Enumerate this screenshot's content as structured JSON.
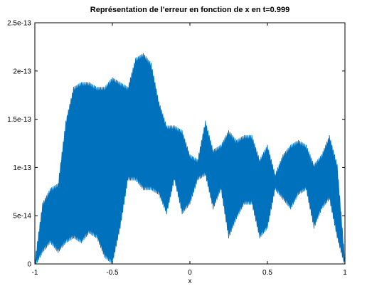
{
  "chart_data": {
    "type": "area",
    "title": "Représentation de l'erreur en fonction de x en t=0.999",
    "xlabel": "x",
    "ylabel": "",
    "xlim": [
      -1,
      1
    ],
    "ylim": [
      0,
      2.5e-13
    ],
    "grid": false,
    "legend": "none",
    "series_color": "#0072BD",
    "x_ticks": [
      -1,
      -0.5,
      0,
      0.5,
      1
    ],
    "x_tick_labels": [
      "-1",
      "-0.5",
      "0",
      "0.5",
      "1"
    ],
    "y_ticks": [
      0,
      5e-14,
      1e-13,
      1.5e-13,
      2e-13,
      2.5e-13
    ],
    "y_tick_labels": [
      "0",
      "5e-14",
      "1e-13",
      "1.5e-13",
      "2e-13",
      "2.5e-13"
    ],
    "series": [
      {
        "x": [
          -1,
          -0.95,
          -0.9,
          -0.85,
          -0.8,
          -0.75,
          -0.7,
          -0.65,
          -0.6,
          -0.55,
          -0.5,
          -0.45,
          -0.4,
          -0.35,
          -0.3,
          -0.25,
          -0.2,
          -0.15,
          -0.1,
          -0.05,
          0,
          0.05,
          0.1,
          0.15,
          0.2,
          0.25,
          0.3,
          0.35,
          0.4,
          0.45,
          0.5,
          0.55,
          0.6,
          0.65,
          0.7,
          0.75,
          0.8,
          0.85,
          0.9,
          0.95,
          1
        ],
        "upper": [
          0,
          6e-14,
          7.5e-14,
          8e-14,
          1.45e-13,
          1.8e-13,
          1.85e-13,
          1.85e-13,
          1.8e-13,
          1.8e-13,
          1.9e-13,
          1.85e-13,
          1.8e-13,
          2.1e-13,
          2.15e-13,
          2.05e-13,
          1.65e-13,
          1.4e-13,
          1.4e-13,
          1.35e-13,
          1.1e-13,
          1.05e-13,
          1.45e-13,
          1.15e-13,
          1.2e-13,
          1.35e-13,
          1.25e-13,
          1.3e-13,
          1.3e-13,
          1.05e-13,
          1.2e-13,
          9e-14,
          1.1e-13,
          1.2e-13,
          1.25e-13,
          1.2e-13,
          1e-13,
          1.1e-13,
          1.3e-13,
          1e-13,
          0
        ],
        "lower": [
          0,
          1.5e-14,
          2.5e-14,
          1.5e-14,
          2.5e-14,
          3e-14,
          2.5e-14,
          3.5e-14,
          3e-14,
          1e-14,
          3e-15,
          4e-14,
          9e-14,
          9e-14,
          8e-14,
          8e-14,
          7.5e-14,
          5.5e-14,
          9e-14,
          5.5e-14,
          6.5e-14,
          9e-14,
          9.5e-14,
          6e-14,
          8e-14,
          3e-14,
          5e-14,
          6.5e-14,
          6.5e-14,
          3e-14,
          4e-14,
          8e-14,
          7e-14,
          6e-14,
          7.5e-14,
          8e-14,
          4e-14,
          6e-14,
          7e-14,
          3e-14,
          0
        ]
      }
    ]
  }
}
